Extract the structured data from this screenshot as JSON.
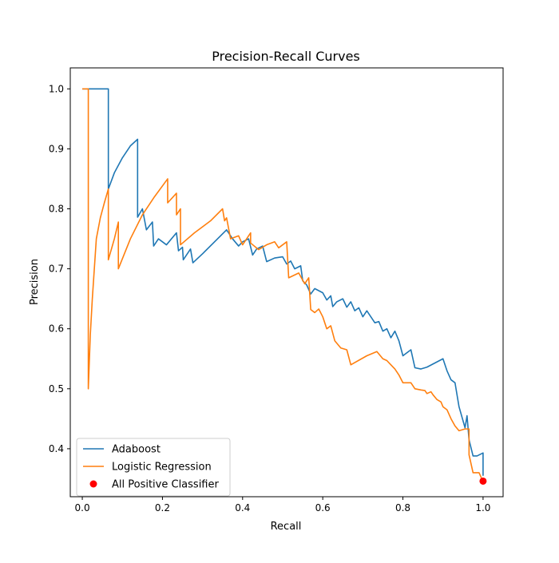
{
  "chart_data": {
    "type": "line",
    "title": "Precision-Recall Curves",
    "xlabel": "Recall",
    "ylabel": "Precision",
    "xlim": [
      -0.03,
      1.05
    ],
    "ylim": [
      0.32,
      1.035
    ],
    "grid": false,
    "legend_position": "lower-left",
    "x_ticks": [
      0.0,
      0.2,
      0.4,
      0.6,
      0.8,
      1.0
    ],
    "x_tick_labels": [
      "0.0",
      "0.2",
      "0.4",
      "0.6",
      "0.8",
      "1.0"
    ],
    "y_ticks": [
      0.4,
      0.5,
      0.6,
      0.7,
      0.8,
      0.9,
      1.0
    ],
    "y_tick_labels": [
      "0.4",
      "0.5",
      "0.6",
      "0.7",
      "0.8",
      "0.9",
      "1.0"
    ],
    "series": [
      {
        "name": "Adaboost",
        "kind": "line",
        "color": "#1f77b4",
        "points": [
          [
            0.0,
            1.0
          ],
          [
            0.065,
            1.0
          ],
          [
            0.065,
            0.833
          ],
          [
            0.08,
            0.86
          ],
          [
            0.1,
            0.885
          ],
          [
            0.12,
            0.905
          ],
          [
            0.138,
            0.916
          ],
          [
            0.138,
            0.786
          ],
          [
            0.15,
            0.8
          ],
          [
            0.16,
            0.765
          ],
          [
            0.175,
            0.778
          ],
          [
            0.178,
            0.738
          ],
          [
            0.19,
            0.75
          ],
          [
            0.21,
            0.74
          ],
          [
            0.235,
            0.76
          ],
          [
            0.24,
            0.73
          ],
          [
            0.25,
            0.736
          ],
          [
            0.252,
            0.715
          ],
          [
            0.27,
            0.733
          ],
          [
            0.276,
            0.71
          ],
          [
            0.3,
            0.725
          ],
          [
            0.33,
            0.745
          ],
          [
            0.36,
            0.765
          ],
          [
            0.375,
            0.75
          ],
          [
            0.39,
            0.738
          ],
          [
            0.4,
            0.745
          ],
          [
            0.415,
            0.75
          ],
          [
            0.425,
            0.723
          ],
          [
            0.435,
            0.733
          ],
          [
            0.45,
            0.738
          ],
          [
            0.46,
            0.712
          ],
          [
            0.48,
            0.718
          ],
          [
            0.5,
            0.72
          ],
          [
            0.51,
            0.708
          ],
          [
            0.52,
            0.713
          ],
          [
            0.53,
            0.7
          ],
          [
            0.545,
            0.705
          ],
          [
            0.55,
            0.68
          ],
          [
            0.56,
            0.673
          ],
          [
            0.57,
            0.658
          ],
          [
            0.58,
            0.667
          ],
          [
            0.6,
            0.66
          ],
          [
            0.61,
            0.648
          ],
          [
            0.62,
            0.655
          ],
          [
            0.625,
            0.637
          ],
          [
            0.635,
            0.645
          ],
          [
            0.65,
            0.65
          ],
          [
            0.66,
            0.636
          ],
          [
            0.67,
            0.645
          ],
          [
            0.68,
            0.63
          ],
          [
            0.69,
            0.635
          ],
          [
            0.7,
            0.62
          ],
          [
            0.71,
            0.63
          ],
          [
            0.72,
            0.62
          ],
          [
            0.73,
            0.61
          ],
          [
            0.74,
            0.612
          ],
          [
            0.75,
            0.596
          ],
          [
            0.76,
            0.6
          ],
          [
            0.77,
            0.585
          ],
          [
            0.78,
            0.596
          ],
          [
            0.79,
            0.58
          ],
          [
            0.8,
            0.555
          ],
          [
            0.82,
            0.565
          ],
          [
            0.83,
            0.535
          ],
          [
            0.845,
            0.533
          ],
          [
            0.86,
            0.536
          ],
          [
            0.88,
            0.543
          ],
          [
            0.9,
            0.55
          ],
          [
            0.91,
            0.53
          ],
          [
            0.92,
            0.515
          ],
          [
            0.93,
            0.51
          ],
          [
            0.935,
            0.49
          ],
          [
            0.94,
            0.47
          ],
          [
            0.955,
            0.435
          ],
          [
            0.96,
            0.455
          ],
          [
            0.965,
            0.415
          ],
          [
            0.975,
            0.388
          ],
          [
            0.985,
            0.388
          ],
          [
            1.0,
            0.393
          ],
          [
            1.0,
            0.355
          ]
        ]
      },
      {
        "name": "Logistic Regression",
        "kind": "line",
        "color": "#ff7f0e",
        "points": [
          [
            0.0,
            1.0
          ],
          [
            0.015,
            1.0
          ],
          [
            0.015,
            0.5
          ],
          [
            0.02,
            0.59
          ],
          [
            0.025,
            0.65
          ],
          [
            0.035,
            0.75
          ],
          [
            0.045,
            0.785
          ],
          [
            0.055,
            0.81
          ],
          [
            0.065,
            0.833
          ],
          [
            0.065,
            0.715
          ],
          [
            0.08,
            0.75
          ],
          [
            0.09,
            0.778
          ],
          [
            0.09,
            0.7
          ],
          [
            0.12,
            0.75
          ],
          [
            0.15,
            0.79
          ],
          [
            0.18,
            0.82
          ],
          [
            0.213,
            0.85
          ],
          [
            0.213,
            0.81
          ],
          [
            0.235,
            0.826
          ],
          [
            0.235,
            0.79
          ],
          [
            0.245,
            0.8
          ],
          [
            0.245,
            0.74
          ],
          [
            0.28,
            0.76
          ],
          [
            0.32,
            0.78
          ],
          [
            0.35,
            0.8
          ],
          [
            0.355,
            0.78
          ],
          [
            0.36,
            0.785
          ],
          [
            0.37,
            0.75
          ],
          [
            0.39,
            0.755
          ],
          [
            0.4,
            0.74
          ],
          [
            0.42,
            0.76
          ],
          [
            0.42,
            0.743
          ],
          [
            0.44,
            0.732
          ],
          [
            0.46,
            0.74
          ],
          [
            0.48,
            0.745
          ],
          [
            0.49,
            0.735
          ],
          [
            0.51,
            0.745
          ],
          [
            0.515,
            0.685
          ],
          [
            0.54,
            0.693
          ],
          [
            0.555,
            0.675
          ],
          [
            0.565,
            0.685
          ],
          [
            0.57,
            0.632
          ],
          [
            0.58,
            0.627
          ],
          [
            0.59,
            0.633
          ],
          [
            0.6,
            0.62
          ],
          [
            0.61,
            0.6
          ],
          [
            0.62,
            0.605
          ],
          [
            0.63,
            0.58
          ],
          [
            0.645,
            0.568
          ],
          [
            0.66,
            0.565
          ],
          [
            0.67,
            0.54
          ],
          [
            0.71,
            0.555
          ],
          [
            0.735,
            0.562
          ],
          [
            0.75,
            0.55
          ],
          [
            0.76,
            0.547
          ],
          [
            0.77,
            0.54
          ],
          [
            0.78,
            0.533
          ],
          [
            0.79,
            0.523
          ],
          [
            0.8,
            0.51
          ],
          [
            0.82,
            0.51
          ],
          [
            0.83,
            0.5
          ],
          [
            0.845,
            0.498
          ],
          [
            0.855,
            0.497
          ],
          [
            0.86,
            0.492
          ],
          [
            0.87,
            0.495
          ],
          [
            0.875,
            0.49
          ],
          [
            0.885,
            0.482
          ],
          [
            0.895,
            0.478
          ],
          [
            0.9,
            0.47
          ],
          [
            0.91,
            0.465
          ],
          [
            0.92,
            0.45
          ],
          [
            0.93,
            0.438
          ],
          [
            0.94,
            0.43
          ],
          [
            0.955,
            0.433
          ],
          [
            0.965,
            0.433
          ],
          [
            0.965,
            0.39
          ],
          [
            0.975,
            0.36
          ],
          [
            0.99,
            0.36
          ],
          [
            1.0,
            0.345
          ]
        ]
      },
      {
        "name": "All Positive Classifier",
        "kind": "scatter",
        "color": "#ff0000",
        "points": [
          [
            1.0,
            0.346
          ]
        ]
      }
    ]
  }
}
